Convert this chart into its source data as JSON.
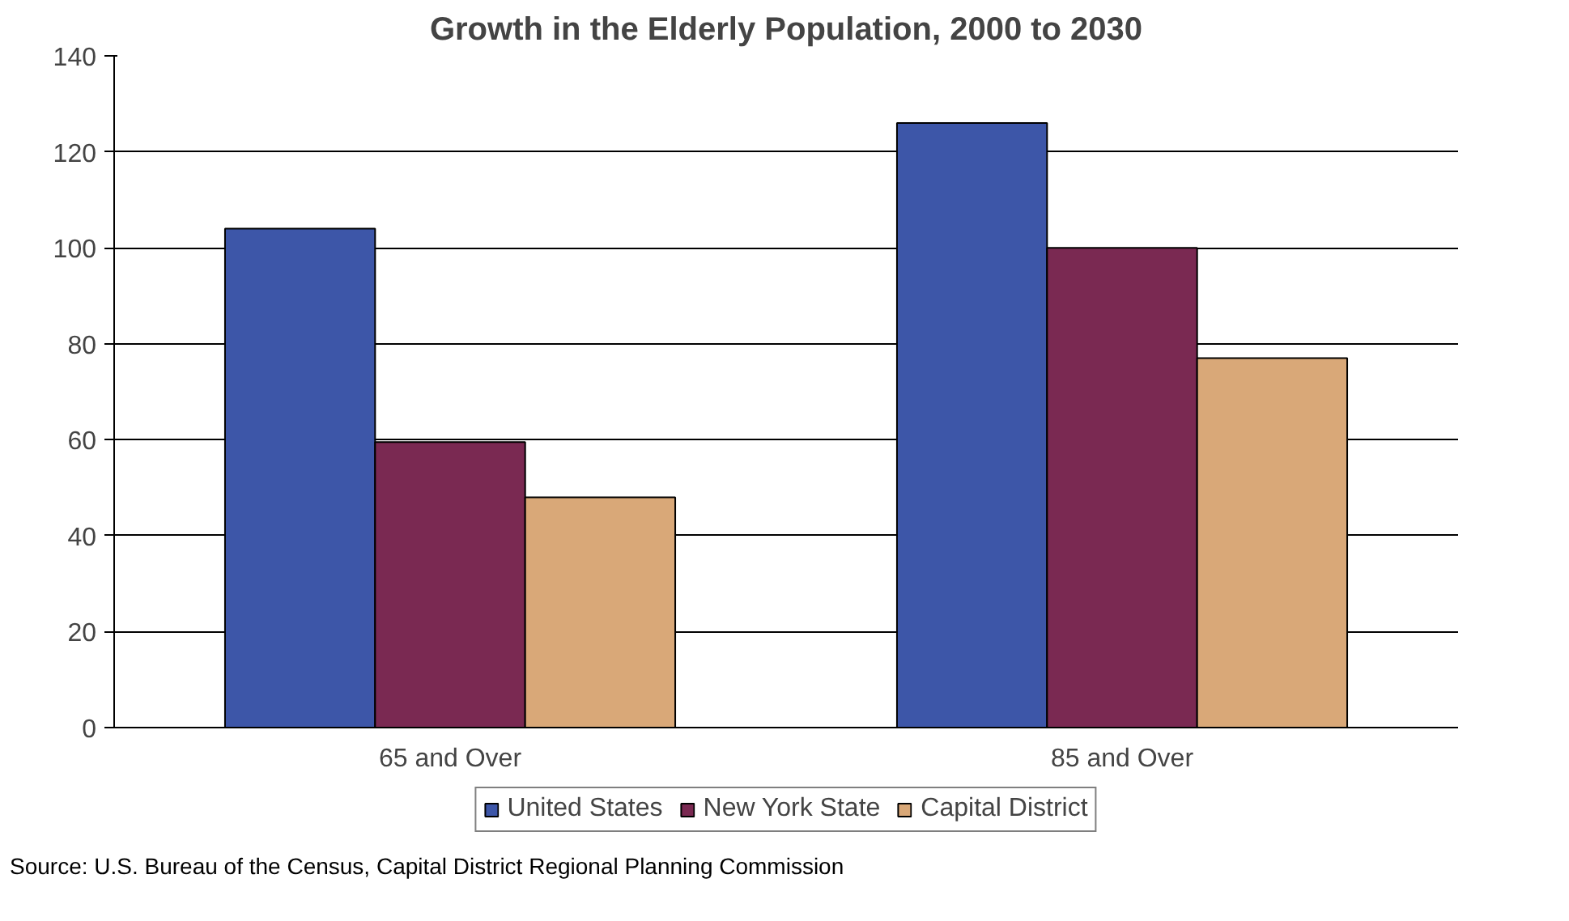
{
  "chart_data": {
    "type": "bar",
    "title": "Growth in the Elderly Population, 2000 to 2030",
    "categories": [
      "65 and Over",
      "85 and Over"
    ],
    "series": [
      {
        "name": "United States",
        "color": "#3d56a8",
        "values": [
          104,
          126
        ]
      },
      {
        "name": "New York State",
        "color": "#7a2952",
        "values": [
          59.5,
          100
        ]
      },
      {
        "name": "Capital District",
        "color": "#d9a878",
        "values": [
          48,
          77
        ]
      }
    ],
    "ylim": [
      0,
      140
    ],
    "yticks": [
      0,
      20,
      40,
      60,
      80,
      100,
      120,
      140
    ],
    "grid": "y",
    "legend": "bottom",
    "annotations": [
      "Source: U.S. Bureau of the Census, Capital District Regional Planning Commission"
    ]
  }
}
